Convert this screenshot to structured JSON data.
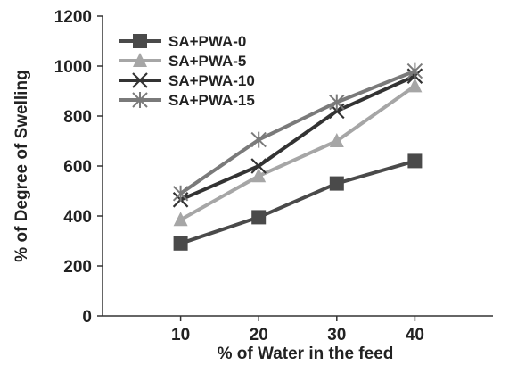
{
  "chart_data": {
    "type": "line",
    "title": "",
    "xlabel": "% of Water in the feed",
    "ylabel": "% of Degree of Swelling",
    "x": [
      10,
      20,
      30,
      40
    ],
    "xlim": [
      0,
      50
    ],
    "ylim": [
      0,
      1200
    ],
    "yticks": [
      0,
      200,
      400,
      600,
      800,
      1000,
      1200
    ],
    "xticks": [
      10,
      20,
      30,
      40
    ],
    "grid": false,
    "legend_position": "top-left",
    "series": [
      {
        "name": "SA+PWA-0",
        "values": [
          290,
          395,
          530,
          620
        ],
        "color": "#4a4a4a",
        "marker": "square"
      },
      {
        "name": "SA+PWA-5",
        "values": [
          385,
          560,
          700,
          920
        ],
        "color": "#a6a6a6",
        "marker": "triangle"
      },
      {
        "name": "SA+PWA-10",
        "values": [
          465,
          600,
          820,
          960
        ],
        "color": "#333333",
        "marker": "x"
      },
      {
        "name": "SA+PWA-15",
        "values": [
          490,
          705,
          855,
          980
        ],
        "color": "#7a7a7a",
        "marker": "asterisk"
      }
    ]
  }
}
